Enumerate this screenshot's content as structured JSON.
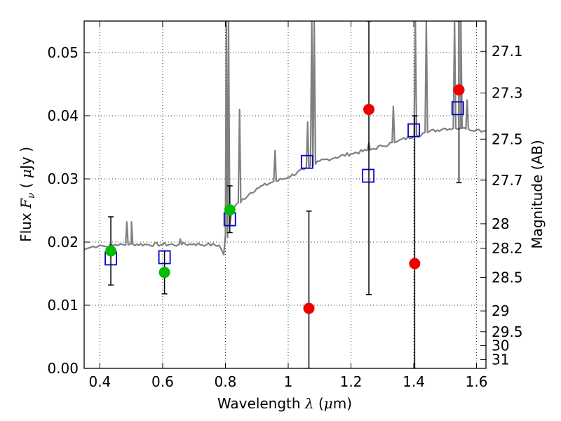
{
  "chart_data": {
    "type": "scatter",
    "xlabel": "Wavelength  λ (μm)",
    "ylabel": "Flux  F_ν ( μJy )",
    "ylabel_right": "Magnitude (AB)",
    "xlim": [
      0.35,
      1.63
    ],
    "ylim": [
      0.0,
      0.055
    ],
    "grid": true,
    "x_ticks": [
      0.4,
      0.6,
      0.8,
      1.0,
      1.2,
      1.4,
      1.6
    ],
    "x_tick_labels": [
      "0.4",
      "0.6",
      "0.8",
      "1",
      "1.2",
      "1.4",
      "1.6"
    ],
    "y_ticks": [
      0.0,
      0.01,
      0.02,
      0.03,
      0.04,
      0.05
    ],
    "y_tick_labels": [
      "0.00",
      "0.01",
      "0.02",
      "0.03",
      "0.04",
      "0.05"
    ],
    "right_ticks": [
      {
        "label": "27.1",
        "flux": 0.0502
      },
      {
        "label": "27.3",
        "flux": 0.0436
      },
      {
        "label": "27.5",
        "flux": 0.0363
      },
      {
        "label": "27.7",
        "flux": 0.0298
      },
      {
        "label": "28",
        "flux": 0.0229
      },
      {
        "label": "28.2",
        "flux": 0.019
      },
      {
        "label": "28.5",
        "flux": 0.0144
      },
      {
        "label": "29",
        "flux": 0.0091
      },
      {
        "label": "29.5",
        "flux": 0.0058
      },
      {
        "label": "30",
        "flux": 0.0036
      },
      {
        "label": "31",
        "flux": 0.0014
      }
    ],
    "series": [
      {
        "kind": "spectrum",
        "color": "#808080",
        "continuum": [
          [
            0.35,
            0.0188
          ],
          [
            0.36,
            0.019
          ],
          [
            0.38,
            0.0193
          ],
          [
            0.4,
            0.0195
          ],
          [
            0.42,
            0.0193
          ],
          [
            0.45,
            0.0196
          ],
          [
            0.48,
            0.0195
          ],
          [
            0.5,
            0.0197
          ],
          [
            0.55,
            0.0196
          ],
          [
            0.6,
            0.0196
          ],
          [
            0.65,
            0.0196
          ],
          [
            0.7,
            0.0197
          ],
          [
            0.74,
            0.0196
          ],
          [
            0.78,
            0.0195
          ],
          [
            0.795,
            0.018
          ],
          [
            0.8,
            0.02
          ],
          [
            0.82,
            0.025
          ],
          [
            0.85,
            0.0265
          ],
          [
            0.88,
            0.0278
          ],
          [
            0.9,
            0.0285
          ],
          [
            0.95,
            0.0295
          ],
          [
            1.0,
            0.0303
          ],
          [
            1.05,
            0.0315
          ],
          [
            1.1,
            0.0328
          ],
          [
            1.15,
            0.0334
          ],
          [
            1.2,
            0.034
          ],
          [
            1.25,
            0.0345
          ],
          [
            1.3,
            0.0352
          ],
          [
            1.35,
            0.036
          ],
          [
            1.4,
            0.0368
          ],
          [
            1.45,
            0.0375
          ],
          [
            1.5,
            0.038
          ],
          [
            1.55,
            0.038
          ],
          [
            1.6,
            0.0378
          ],
          [
            1.63,
            0.0376
          ]
        ],
        "emission_lines": [
          [
            0.4861,
            0.0232
          ],
          [
            0.5007,
            0.0232
          ],
          [
            0.6563,
            0.0205
          ],
          [
            0.803,
            0.055
          ],
          [
            0.81,
            0.055
          ],
          [
            0.845,
            0.041
          ],
          [
            0.958,
            0.0345
          ],
          [
            1.062,
            0.039
          ],
          [
            1.075,
            0.055
          ],
          [
            1.083,
            0.055
          ],
          [
            1.257,
            0.0358
          ],
          [
            1.335,
            0.0415
          ],
          [
            1.405,
            0.055
          ],
          [
            1.44,
            0.055
          ],
          [
            1.53,
            0.055
          ],
          [
            1.55,
            0.055
          ],
          [
            1.57,
            0.0425
          ]
        ]
      },
      {
        "kind": "model_photometry",
        "marker": "open-square",
        "color": "#0000cc",
        "points": [
          {
            "x": 0.435,
            "y": 0.0174
          },
          {
            "x": 0.606,
            "y": 0.0176
          },
          {
            "x": 0.814,
            "y": 0.0236
          },
          {
            "x": 1.06,
            "y": 0.0327
          },
          {
            "x": 1.255,
            "y": 0.0305
          },
          {
            "x": 1.4,
            "y": 0.0377
          },
          {
            "x": 1.54,
            "y": 0.0412
          }
        ]
      },
      {
        "kind": "detections",
        "marker": "filled-circle",
        "color": "#00bb00",
        "points": [
          {
            "x": 0.435,
            "y": 0.0186,
            "ylo": 0.0132,
            "yhi": 0.024
          },
          {
            "x": 0.606,
            "y": 0.0152,
            "ylo": 0.0118,
            "yhi": 0.0186
          },
          {
            "x": 0.814,
            "y": 0.0251,
            "ylo": 0.0215,
            "yhi": 0.0289
          }
        ]
      },
      {
        "kind": "low_significance",
        "marker": "filled-circle",
        "color": "#ee0000",
        "points": [
          {
            "x": 1.066,
            "y": 0.0095,
            "ylo": 0.0,
            "yhi": 0.0249
          },
          {
            "x": 1.257,
            "y": 0.041,
            "ylo": 0.0117,
            "yhi": 0.055
          },
          {
            "x": 1.403,
            "y": 0.0166,
            "ylo": 0.0,
            "yhi": 0.04
          },
          {
            "x": 1.544,
            "y": 0.0441,
            "ylo": 0.0294,
            "yhi": 0.055
          }
        ]
      }
    ]
  }
}
